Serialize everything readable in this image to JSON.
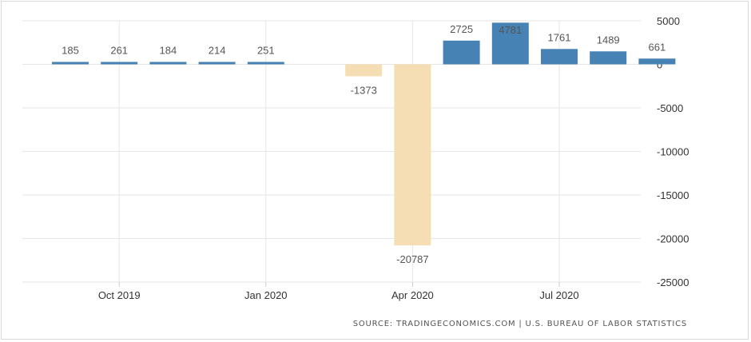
{
  "chart_data": {
    "type": "bar",
    "categories": [
      "Sep 2019",
      "Oct 2019",
      "Nov 2019",
      "Dec 2019",
      "Jan 2020",
      "Feb 2020",
      "Mar 2020",
      "Apr 2020",
      "May 2020",
      "Jun 2020",
      "Jul 2020",
      "Aug 2020",
      "Sep 2020"
    ],
    "values": [
      185,
      261,
      184,
      214,
      251,
      null,
      -1373,
      -20787,
      2725,
      4781,
      1761,
      1489,
      661
    ],
    "data_labels": [
      "185",
      "261",
      "184",
      "214",
      "251",
      "",
      "-1373",
      "-20787",
      "2725",
      "4781",
      "1761",
      "1489",
      "661"
    ],
    "ylim": [
      -25000,
      5000
    ],
    "yticks": [
      5000,
      0,
      -5000,
      -10000,
      -15000,
      -20000,
      -25000
    ],
    "ytick_labels": [
      "5000",
      "0",
      "-5000",
      "-10000",
      "-15000",
      "-20000",
      "-25000"
    ],
    "xtick_labels": [
      {
        "label": "Oct 2019",
        "category": "Oct 2019"
      },
      {
        "label": "Jan 2020",
        "category": "Jan 2020"
      },
      {
        "label": "Apr 2020",
        "category": "Apr 2020"
      },
      {
        "label": "Jul 2020",
        "category": "Jul 2020"
      }
    ],
    "colors": {
      "positive": "#4682b4",
      "negative": "#f5deb3"
    },
    "grid": true,
    "yaxis_position": "right",
    "title": "",
    "xlabel": "",
    "ylabel": ""
  },
  "source": "SOURCE: TRADINGECONOMICS.COM | U.S. BUREAU OF LABOR STATISTICS"
}
